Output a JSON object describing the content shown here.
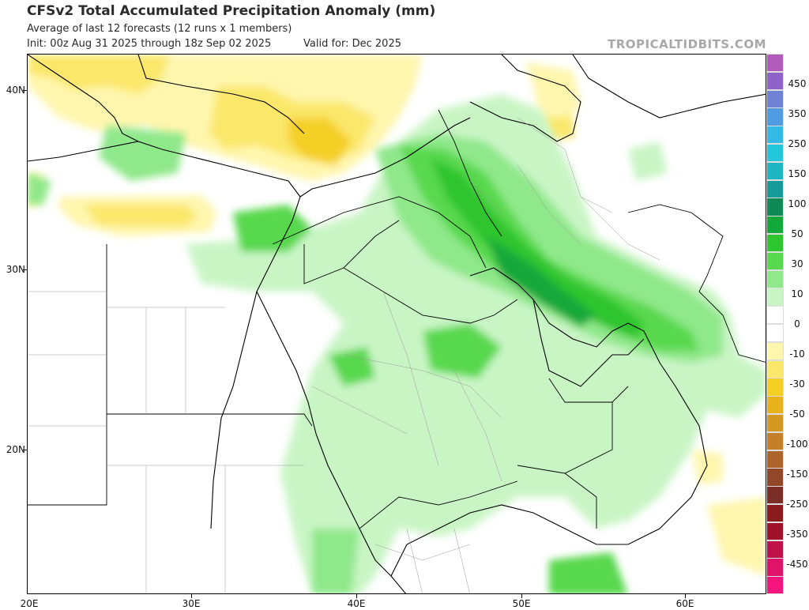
{
  "header": {
    "title": "CFSv2 Total Accumulated Precipitation Anomaly (mm)",
    "subtitle": "Average of last 12 forecasts (12 runs x 1 members)",
    "init": "Init: 00z Aug 31 2025 through 18z Sep 02 2025",
    "valid": "Valid for: Dec 2025",
    "brand": "TROPICALTIDBITS.COM"
  },
  "axes": {
    "y_labels": [
      "40N",
      "30N",
      "20N"
    ],
    "x_labels": [
      "20E",
      "30E",
      "40E",
      "50E",
      "60E"
    ]
  },
  "colorbar": {
    "labels": [
      "450",
      "350",
      "250",
      "150",
      "100",
      "50",
      "30",
      "10",
      "0",
      "-10",
      "-30",
      "-50",
      "-100",
      "-150",
      "-250",
      "-350",
      "-450"
    ],
    "colors": [
      "#b35bbd",
      "#8e62c9",
      "#6f82d6",
      "#4f9de0",
      "#34b9e6",
      "#24c6dc",
      "#1fb5c2",
      "#179a9a",
      "#0f8a56",
      "#12a83a",
      "#2ec52f",
      "#58d84d",
      "#8fe88a",
      "#c9f5c5",
      "#ffffff",
      "#ffffff",
      "#fff6ae",
      "#fbe76a",
      "#f4cf25",
      "#e8b21f",
      "#d59822",
      "#c48028",
      "#ad642a",
      "#93472a",
      "#7a2e25",
      "#8a1a1c",
      "#a0122a",
      "#c0124a",
      "#e0126a",
      "#f5157f"
    ]
  }
}
